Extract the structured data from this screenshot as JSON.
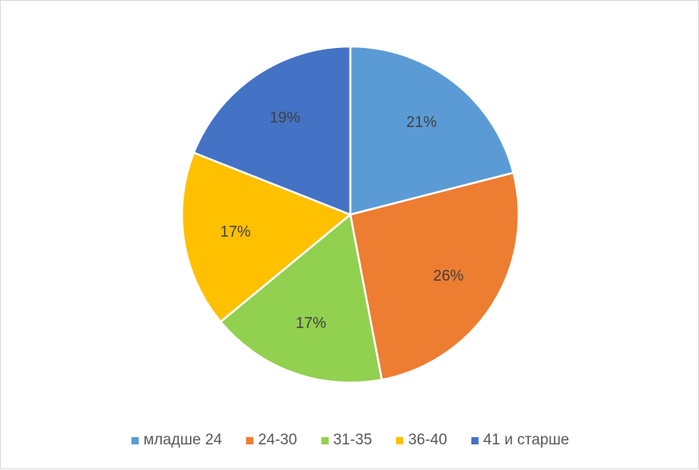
{
  "chart_data": {
    "type": "pie",
    "title": "",
    "categories": [
      "младше 24",
      "24-30",
      "31-35",
      "36-40",
      "41 и старше"
    ],
    "values": [
      21,
      26,
      17,
      17,
      19
    ],
    "value_labels": [
      "21%",
      "26%",
      "17%",
      "17%",
      "19%"
    ],
    "colors": [
      "#5b9bd5",
      "#ed7d31",
      "#92d050",
      "#ffc000",
      "#4472c4"
    ],
    "legend_position": "bottom",
    "data_labels": "inside"
  }
}
